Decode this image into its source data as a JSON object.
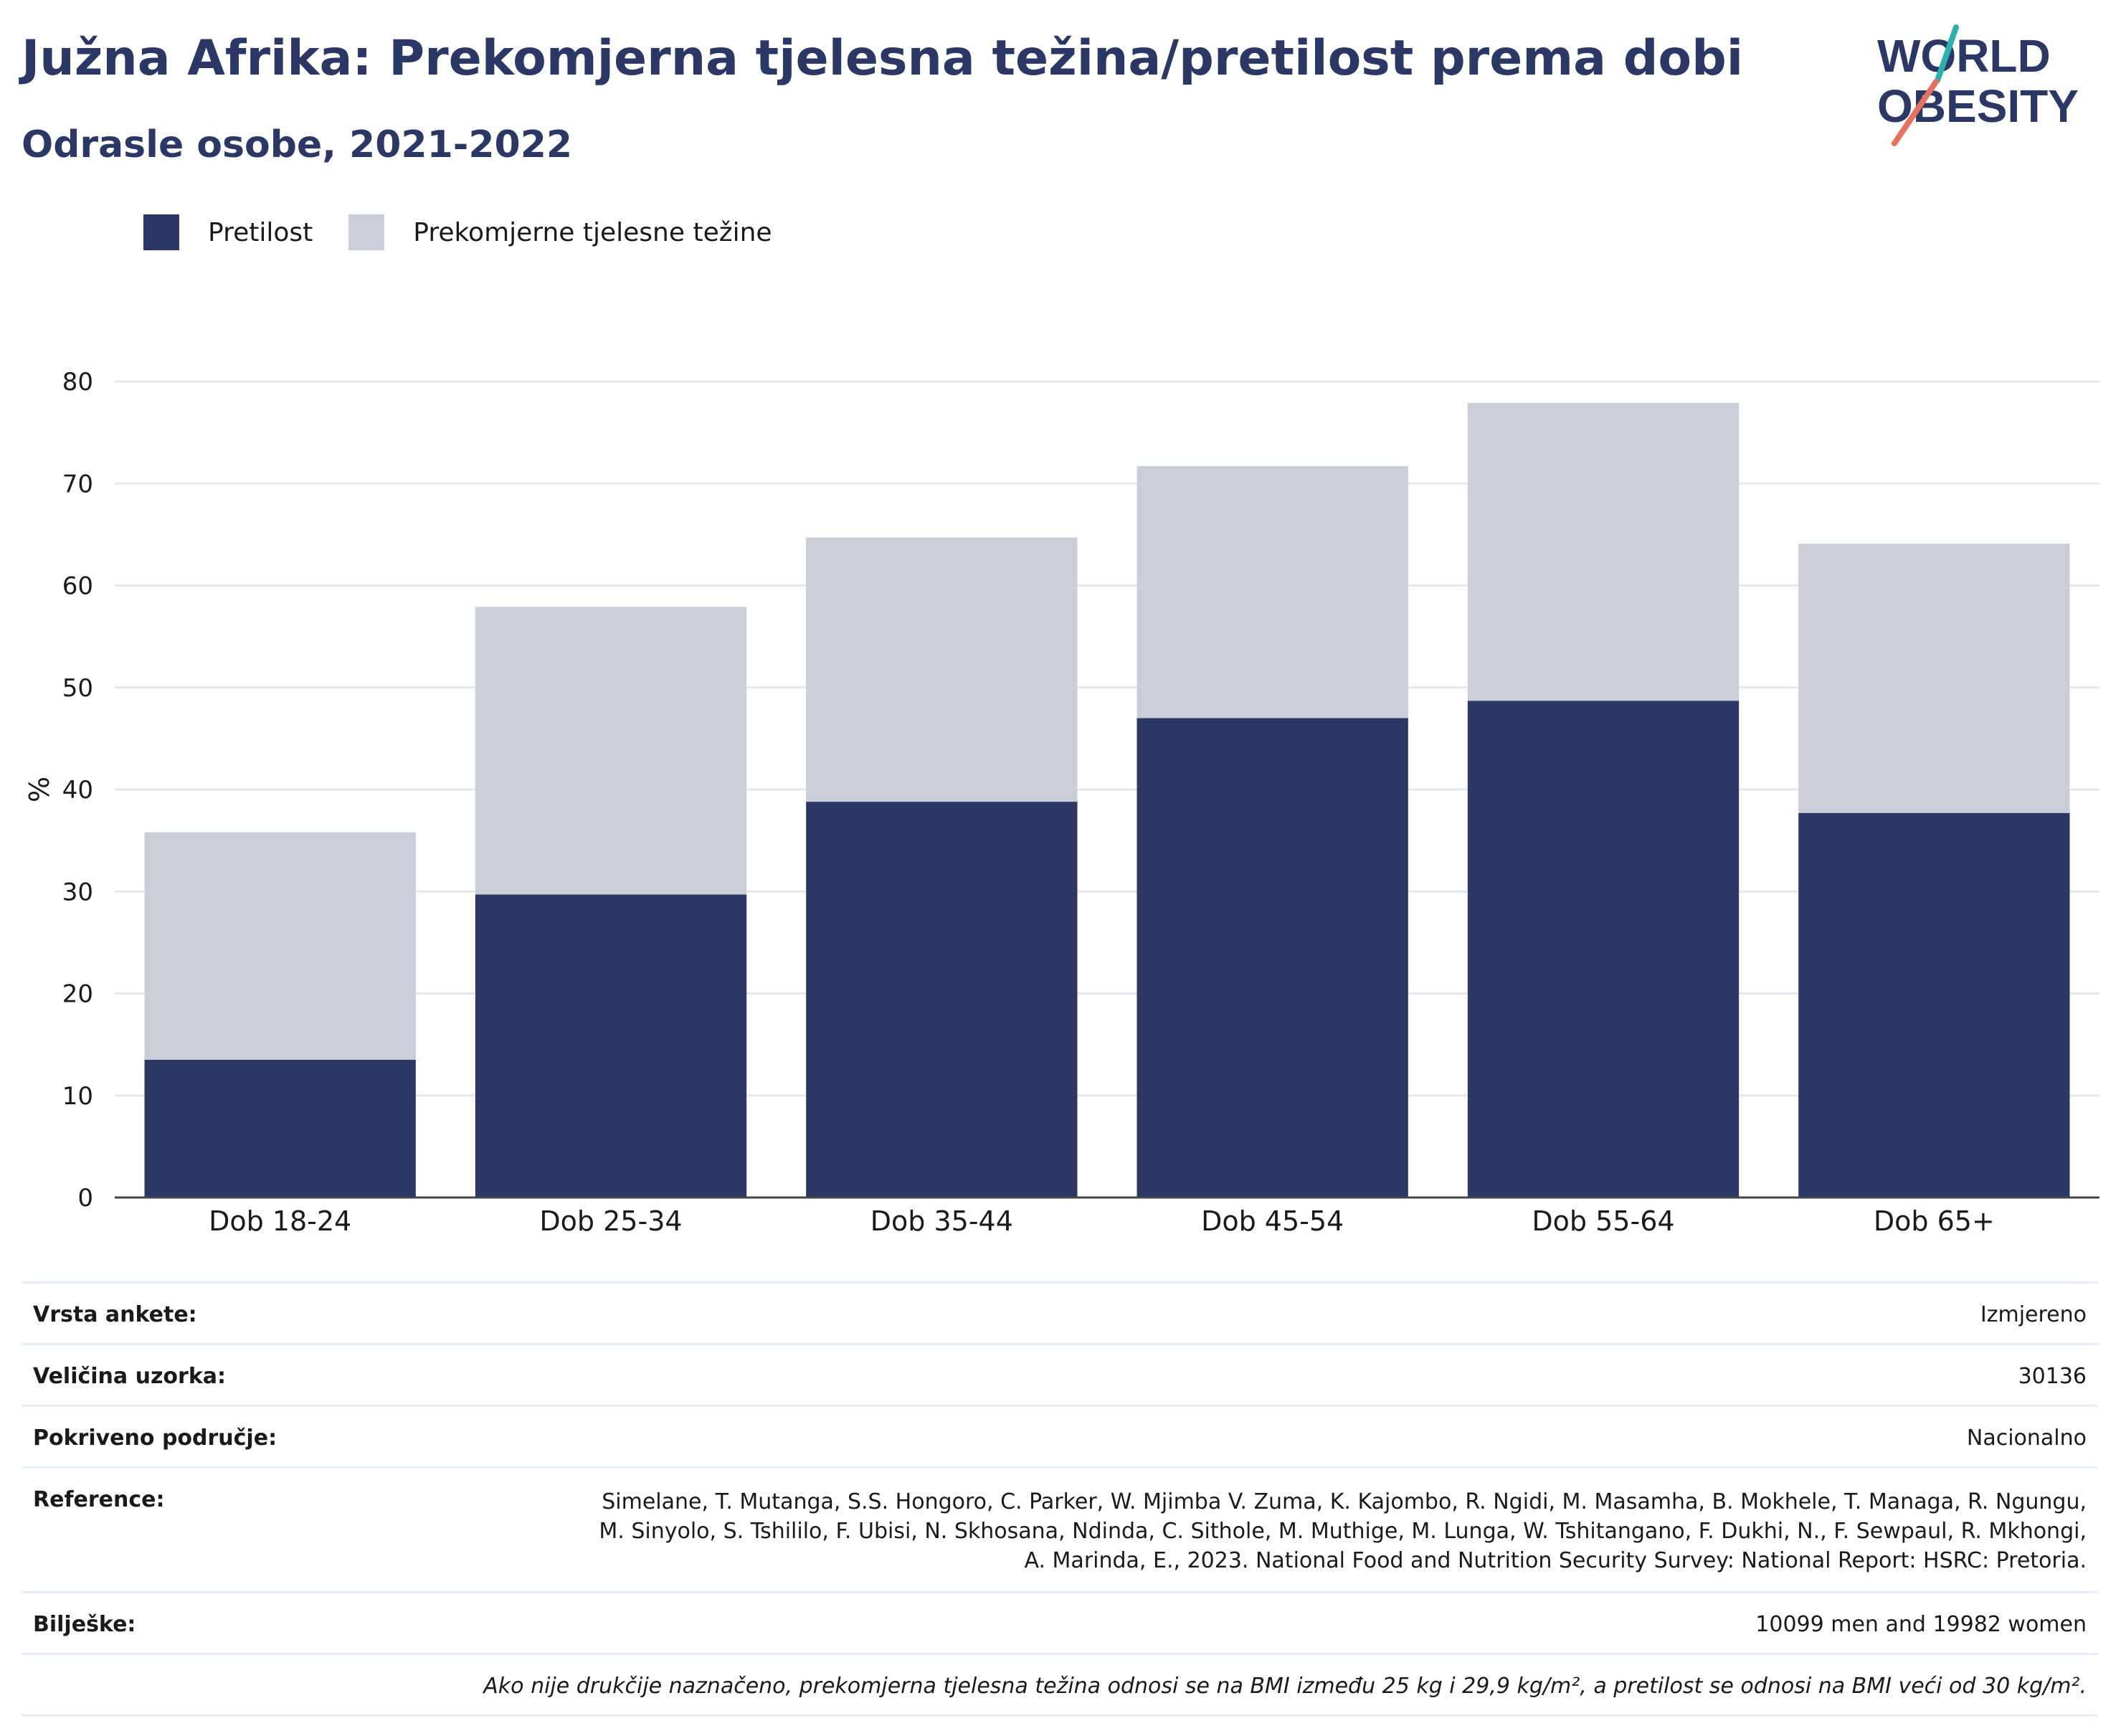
{
  "header": {
    "title": "Južna Afrika: Prekomjerna tjelesna težina/pretilost prema dobi",
    "subtitle": "Odrasle osobe, 2021-2022",
    "logo_line1": "WORLD",
    "logo_line2": "OBESITY"
  },
  "legend": {
    "items": [
      {
        "label": "Pretilost",
        "color": "#2b3764"
      },
      {
        "label": "Prekomjerne tjelesne težine",
        "color": "#cbcdd9"
      }
    ]
  },
  "chart_data": {
    "type": "bar",
    "stacked": true,
    "categories": [
      "Dob 18-24",
      "Dob 25-34",
      "Dob 35-44",
      "Dob 45-54",
      "Dob 55-64",
      "Dob 65+"
    ],
    "series": [
      {
        "name": "Pretilost",
        "color": "#2b3764",
        "values": [
          13.5,
          29.7,
          38.8,
          47.0,
          48.7,
          37.7
        ]
      },
      {
        "name": "Prekomjerne tjelesne težine",
        "color": "#cbcdd9",
        "values": [
          22.3,
          28.2,
          25.9,
          24.7,
          29.2,
          26.4
        ]
      }
    ],
    "ylabel": "%",
    "xlabel": "",
    "ylim": [
      0,
      80
    ],
    "yticks": [
      0,
      10,
      20,
      30,
      40,
      50,
      60,
      70,
      80
    ],
    "grid": true,
    "legend_position": "top-left"
  },
  "meta": {
    "survey_type_label": "Vrsta ankete:",
    "survey_type_value": "Izmjereno",
    "sample_size_label": "Veličina uzorka:",
    "sample_size_value": "30136",
    "coverage_label": "Pokriveno područje:",
    "coverage_value": "Nacionalno",
    "reference_label": "Reference:",
    "reference_value": "Simelane, T. Mutanga, S.S. Hongoro, C. Parker, W. Mjimba V. Zuma, K. Kajombo, R. Ngidi, M. Masamha, B. Mokhele, T. Managa, R. Ngungu, M. Sinyolo, S. Tshililo, F. Ubisi, N. Skhosana, Ndinda, C. Sithole, M. Muthige, M. Lunga, W. Tshitangano, F. Dukhi, N., F. Sewpaul, R. Mkhongi, A. Marinda, E., 2023. National Food and Nutrition Security Survey: National Report: HSRC: Pretoria.",
    "notes_label": "Bilješke:",
    "notes_value": "10099 men and 19982 women",
    "footnote": "Ako nije drukčije naznačeno, prekomjerna tjelesna težina odnosi se na BMI između 25 kg i 29,9 kg/m², a pretilost se odnosi na BMI veći od 30 kg/m²."
  }
}
